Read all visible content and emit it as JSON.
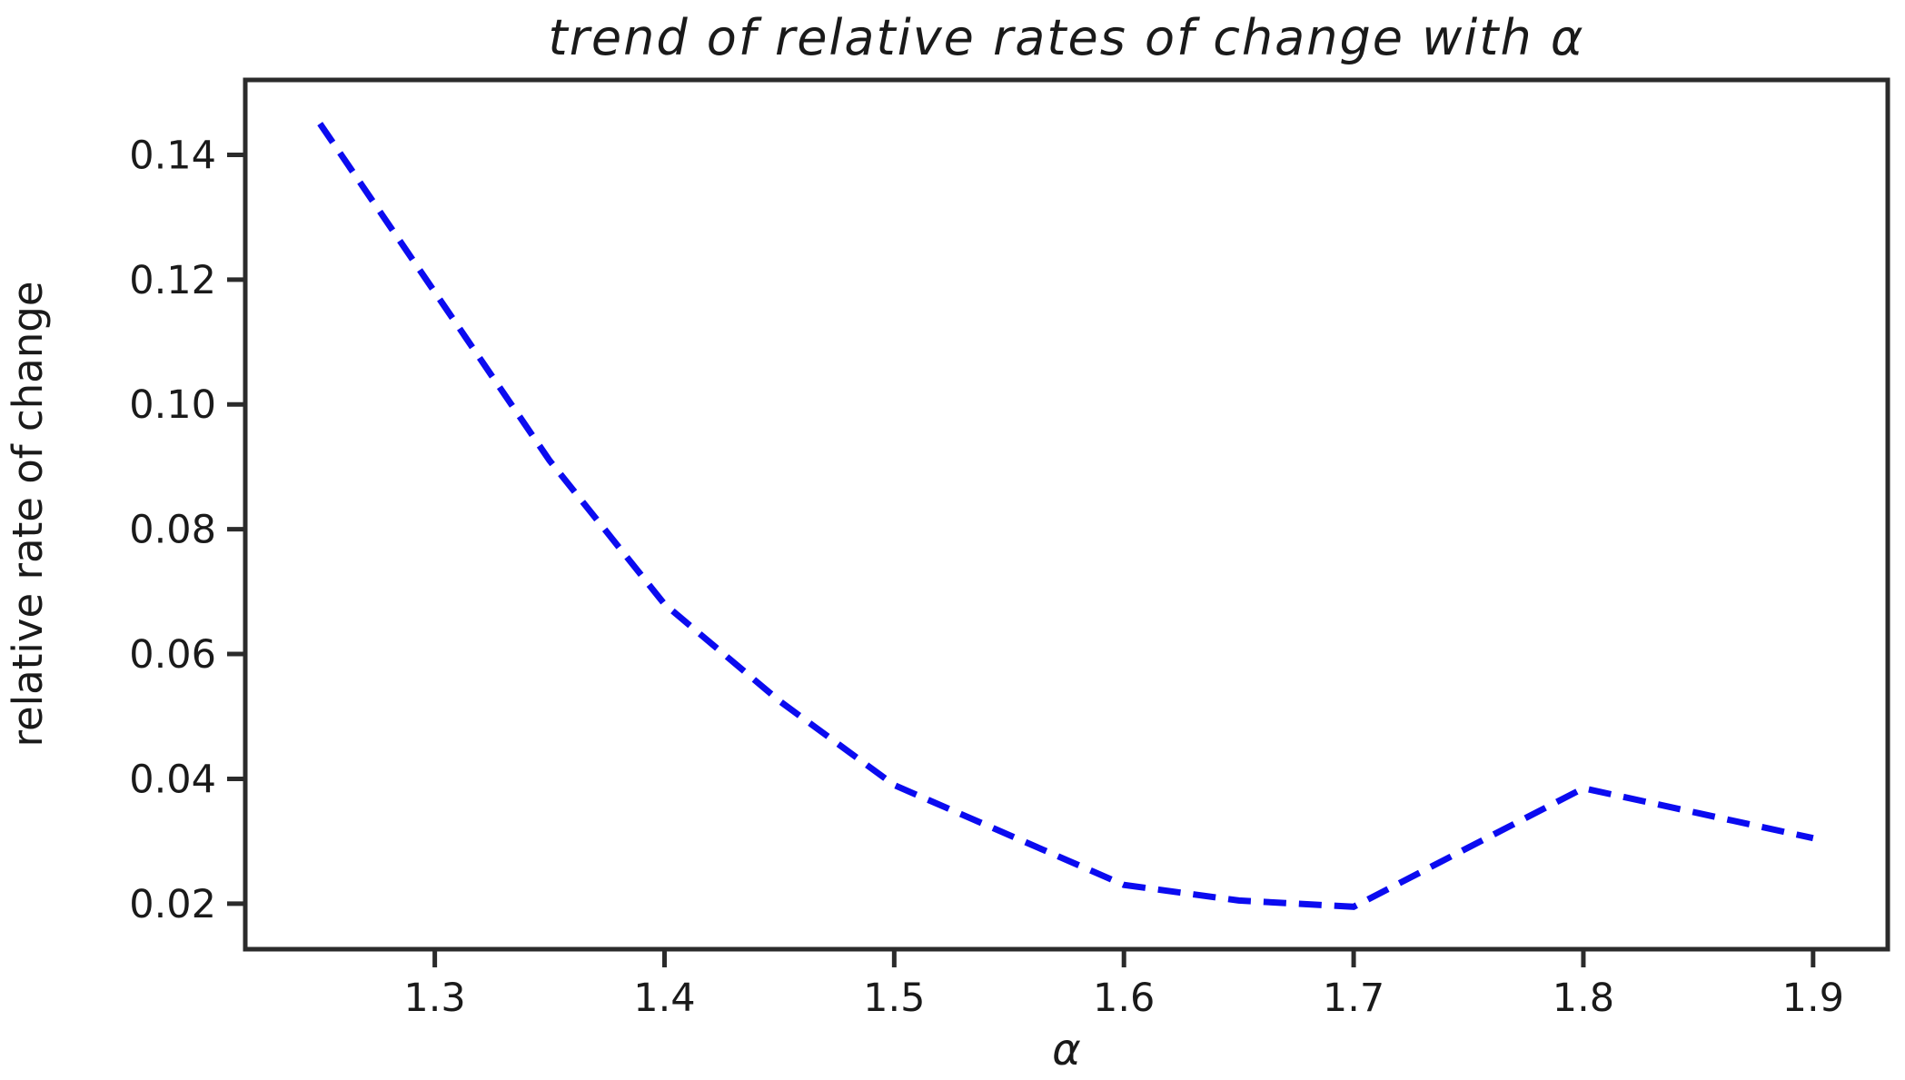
{
  "chart_data": {
    "type": "line",
    "title": "trend of relative rates of change with α",
    "xlabel": "α",
    "ylabel": "relative rate of change",
    "x": [
      1.25,
      1.3,
      1.35,
      1.4,
      1.45,
      1.5,
      1.55,
      1.6,
      1.65,
      1.7,
      1.75,
      1.8,
      1.85,
      1.9
    ],
    "y": [
      0.145,
      0.118,
      0.091,
      0.068,
      0.0525,
      0.039,
      0.031,
      0.023,
      0.0205,
      0.0195,
      0.029,
      0.0385,
      0.0345,
      0.0305
    ],
    "xlim": [
      1.2175,
      1.9325
    ],
    "ylim": [
      0.0127,
      0.152
    ],
    "xticks": {
      "values": [
        1.3,
        1.4,
        1.5,
        1.6,
        1.7,
        1.8,
        1.9
      ],
      "labels": [
        "1.3",
        "1.4",
        "1.5",
        "1.6",
        "1.7",
        "1.8",
        "1.9"
      ]
    },
    "yticks": {
      "values": [
        0.02,
        0.04,
        0.06,
        0.08,
        0.1,
        0.12,
        0.14
      ],
      "labels": [
        "0.02",
        "0.04",
        "0.06",
        "0.08",
        "0.10",
        "0.12",
        "0.14"
      ]
    },
    "grid": false,
    "legend_position": "none",
    "line": {
      "style": "dashed",
      "color": "#0b0bf0",
      "width": 7
    },
    "colors": {
      "axis": "#2b2b2b",
      "text": "#1a1a1a",
      "background": "#ffffff"
    }
  }
}
